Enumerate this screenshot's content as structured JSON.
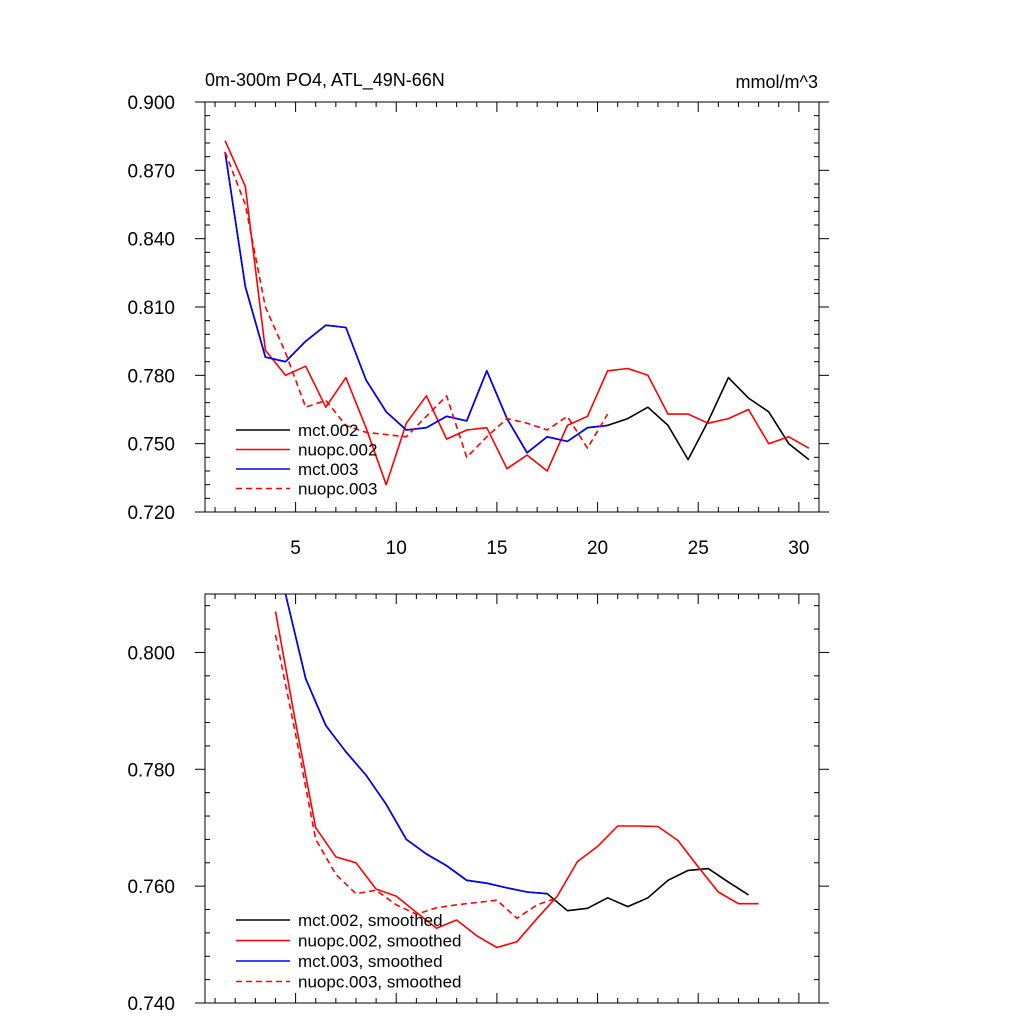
{
  "chart_data": [
    {
      "type": "line",
      "title": "0m-300m PO4, ATL_49N-66N",
      "units": "mmol/m^3",
      "xlim": [
        0.5,
        31
      ],
      "ylim": [
        0.72,
        0.9
      ],
      "xticks": [
        5,
        10,
        15,
        20,
        25,
        30
      ],
      "xtick_labels": [
        "5",
        "10",
        "15",
        "20",
        "25",
        "30"
      ],
      "yticks": [
        0.72,
        0.75,
        0.78,
        0.81,
        0.84,
        0.87,
        0.9
      ],
      "ytick_labels": [
        "0.720",
        "0.750",
        "0.780",
        "0.810",
        "0.840",
        "0.870",
        "0.900"
      ],
      "legend_position": "bottom-left",
      "series": [
        {
          "name": "mct.002",
          "color": "#000000",
          "dash": "solid",
          "x": [
            1.5,
            2.5,
            3.5,
            4.5,
            5.5,
            6.5,
            7.5,
            8.5,
            9.5,
            10.5,
            11.5,
            12.5,
            13.5,
            14.5,
            15.5,
            16.5,
            17.5,
            18.5,
            19.5,
            20.5,
            21.5,
            22.5,
            23.5,
            24.5,
            25.5,
            26.5,
            27.5,
            28.5,
            29.5,
            30.5
          ],
          "y": [
            0.878,
            0.819,
            0.788,
            0.786,
            0.795,
            0.802,
            0.801,
            0.778,
            0.764,
            0.756,
            0.757,
            0.762,
            0.76,
            0.782,
            0.761,
            0.746,
            0.753,
            0.751,
            0.757,
            0.758,
            0.761,
            0.766,
            0.758,
            0.743,
            0.76,
            0.779,
            0.77,
            0.764,
            0.75,
            0.743
          ]
        },
        {
          "name": "nuopc.002",
          "color": "#ff0000",
          "dash": "solid",
          "x": [
            1.5,
            2.5,
            3.5,
            4.5,
            5.5,
            6.5,
            7.5,
            8.5,
            9.5,
            10.5,
            11.5,
            12.5,
            13.5,
            14.5,
            15.5,
            16.5,
            17.5,
            18.5,
            19.5,
            20.5,
            21.5,
            22.5,
            23.5,
            24.5,
            25.5,
            26.5,
            27.5,
            28.5,
            29.5,
            30.5
          ],
          "y": [
            0.883,
            0.863,
            0.791,
            0.78,
            0.784,
            0.766,
            0.779,
            0.757,
            0.732,
            0.759,
            0.771,
            0.752,
            0.756,
            0.757,
            0.739,
            0.745,
            0.738,
            0.758,
            0.762,
            0.782,
            0.783,
            0.78,
            0.763,
            0.763,
            0.759,
            0.761,
            0.765,
            0.75,
            0.753,
            0.748
          ]
        },
        {
          "name": "mct.003",
          "color": "#0000ff",
          "dash": "solid",
          "x": [
            1.5,
            2.5,
            3.5,
            4.5,
            5.5,
            6.5,
            7.5,
            8.5,
            9.5,
            10.5,
            11.5,
            12.5,
            13.5,
            14.5,
            15.5,
            16.5,
            17.5,
            18.5,
            19.5,
            20.5
          ],
          "y": [
            0.878,
            0.819,
            0.788,
            0.786,
            0.795,
            0.802,
            0.801,
            0.778,
            0.764,
            0.756,
            0.757,
            0.762,
            0.76,
            0.782,
            0.761,
            0.746,
            0.753,
            0.751,
            0.757,
            0.758
          ]
        },
        {
          "name": "nuopc.003",
          "color": "#ff0000",
          "dash": "dashed",
          "x": [
            1.5,
            2.5,
            3.5,
            4.5,
            5.5,
            6.5,
            7.5,
            8.5,
            9.5,
            10.5,
            11.5,
            12.5,
            13.5,
            14.5,
            15.5,
            16.5,
            17.5,
            18.5,
            19.5,
            20.5
          ],
          "y": [
            0.878,
            0.855,
            0.81,
            0.79,
            0.766,
            0.769,
            0.758,
            0.755,
            0.754,
            0.753,
            0.762,
            0.771,
            0.744,
            0.753,
            0.761,
            0.759,
            0.756,
            0.762,
            0.748,
            0.763
          ]
        }
      ]
    },
    {
      "type": "line",
      "xlim": [
        0.5,
        31
      ],
      "ylim": [
        0.74,
        0.81
      ],
      "xticks": [
        5,
        10,
        15,
        20,
        25,
        30
      ],
      "yticks": [
        0.74,
        0.76,
        0.78,
        0.8
      ],
      "ytick_labels": [
        "0.740",
        "0.760",
        "0.780",
        "0.800"
      ],
      "legend_position": "bottom-left",
      "series": [
        {
          "name": "mct.002, smoothed",
          "color": "#000000",
          "dash": "solid",
          "x": [
            4.5,
            5.5,
            6.5,
            7.5,
            8.5,
            9.5,
            10.5,
            11.5,
            12.5,
            13.5,
            14.5,
            15.5,
            16.5,
            17.5,
            18.5,
            19.5,
            20.5,
            21.5,
            22.5,
            23.5,
            24.5,
            25.5,
            26.5,
            27.5
          ],
          "y": [
            0.81,
            0.7955,
            0.7875,
            0.783,
            0.779,
            0.774,
            0.768,
            0.7655,
            0.7635,
            0.761,
            0.7605,
            0.7597,
            0.759,
            0.7587,
            0.7558,
            0.7562,
            0.758,
            0.7565,
            0.758,
            0.761,
            0.7627,
            0.763,
            0.7607,
            0.7585
          ]
        },
        {
          "name": "nuopc.002, smoothed",
          "color": "#ff0000",
          "dash": "solid",
          "x": [
            4.0,
            5.0,
            6.0,
            7.0,
            8.0,
            9.0,
            10.0,
            11.0,
            12.0,
            13.0,
            14.0,
            15.0,
            16.0,
            17.0,
            18.0,
            19.0,
            20.0,
            21.0,
            22.0,
            23.0,
            24.0,
            25.0,
            26.0,
            27.0,
            28.0
          ],
          "y": [
            0.807,
            0.788,
            0.77,
            0.765,
            0.764,
            0.7595,
            0.7583,
            0.7555,
            0.7528,
            0.7542,
            0.7515,
            0.7495,
            0.7505,
            0.7545,
            0.7583,
            0.7642,
            0.7668,
            0.7703,
            0.7703,
            0.7702,
            0.7678,
            0.7633,
            0.759,
            0.757,
            0.757
          ]
        },
        {
          "name": "mct.003, smoothed",
          "color": "#0000ff",
          "dash": "solid",
          "x": [
            4.5,
            5.5,
            6.5,
            7.5,
            8.5,
            9.5,
            10.5,
            11.5,
            12.5,
            13.5,
            14.5,
            15.5,
            16.5,
            17.5
          ],
          "y": [
            0.81,
            0.7955,
            0.7875,
            0.783,
            0.779,
            0.774,
            0.768,
            0.7655,
            0.7635,
            0.761,
            0.7605,
            0.7597,
            0.759,
            0.7587
          ]
        },
        {
          "name": "nuopc.003, smoothed",
          "color": "#ff0000",
          "dash": "dashed",
          "x": [
            4.0,
            5.0,
            6.0,
            7.0,
            8.0,
            9.0,
            10.0,
            11.0,
            12.0,
            13.0,
            14.0,
            15.0,
            16.0,
            17.0,
            18.0
          ],
          "y": [
            0.803,
            0.786,
            0.768,
            0.762,
            0.7587,
            0.7593,
            0.7568,
            0.7552,
            0.7563,
            0.7568,
            0.7572,
            0.7576,
            0.7545,
            0.7568,
            0.758
          ]
        }
      ]
    }
  ]
}
